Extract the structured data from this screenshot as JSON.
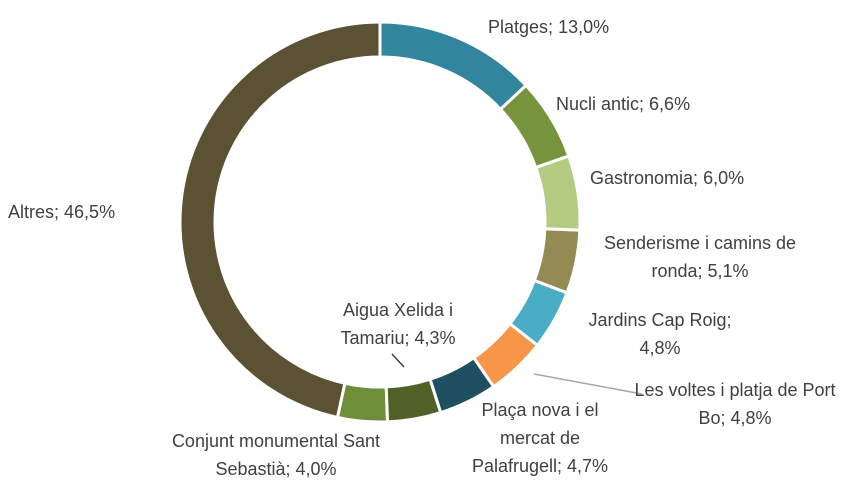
{
  "chart_data": {
    "type": "donut",
    "categories": [
      "Platges",
      "Nucli antic",
      "Gastronomia",
      "Senderisme i camins de ronda",
      "Jardins Cap Roig",
      "Les voltes i platja de Port Bo",
      "Plaça nova i el mercat de Palafrugell",
      "Aigua Xelida i Tamariu",
      "Conjunt monumental Sant Sebastià",
      "Altres"
    ],
    "values": [
      13.0,
      6.6,
      6.0,
      5.1,
      4.8,
      4.8,
      4.7,
      4.3,
      4.0,
      46.5
    ],
    "value_labels": [
      "13,0%",
      "6,6%",
      "6,0%",
      "5,1%",
      "4,8%",
      "4,8%",
      "4,7%",
      "4,3%",
      "4,0%",
      "46,5%"
    ],
    "colors": [
      "#31859c",
      "#77933c",
      "#b3cc82",
      "#948a54",
      "#4bacc6",
      "#f79646",
      "#1f5061",
      "#4f6228",
      "#6f8e3a",
      "#5b5233"
    ]
  }
}
